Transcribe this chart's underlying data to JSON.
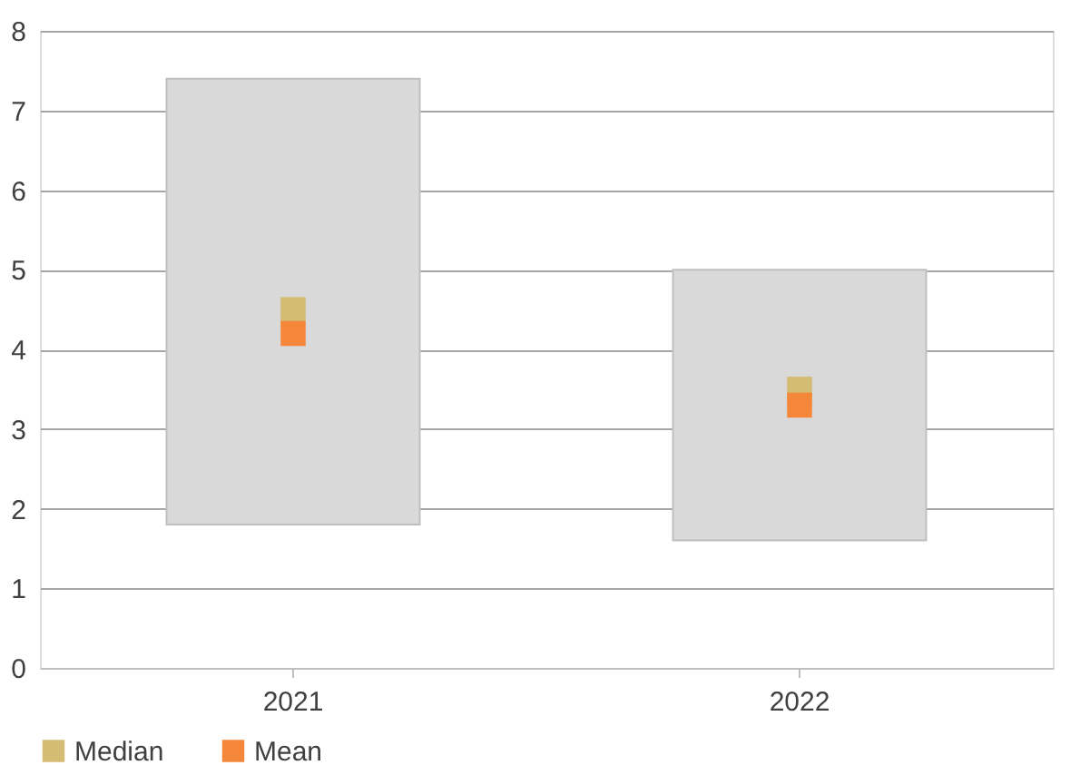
{
  "chart_data": {
    "type": "bar",
    "categories": [
      "2021",
      "2022"
    ],
    "base": [
      1.8,
      1.6
    ],
    "values": [
      5.6,
      3.4
    ],
    "color": "#d9d9d9",
    "ylim": [
      0,
      8
    ],
    "yticks": [
      0,
      1,
      2,
      3,
      4,
      5,
      6,
      7,
      8
    ],
    "grid": "y",
    "legend": "bottom left",
    "marker": "square",
    "series": [
      {
        "name": "Median",
        "type": "scatter",
        "color": "#d4bc74",
        "values": [
          4.5,
          3.5
        ]
      },
      {
        "name": "Mean",
        "type": "scatter",
        "color": "#f5873a",
        "values": [
          4.2,
          3.3
        ]
      }
    ]
  }
}
